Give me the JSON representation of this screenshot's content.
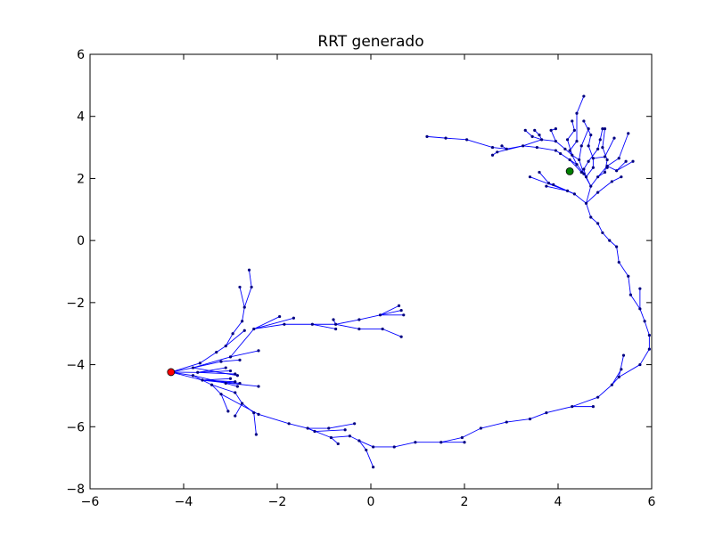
{
  "chart_data": {
    "type": "scatter",
    "title": "RRT generado",
    "xlabel": "",
    "ylabel": "",
    "xlim": [
      -6,
      6
    ],
    "ylim": [
      -8,
      6
    ],
    "xticks": [
      "−6",
      "−4",
      "−2",
      "0",
      "2",
      "4",
      "6"
    ],
    "yticks": [
      "−8",
      "−6",
      "−4",
      "−2",
      "0",
      "2",
      "4",
      "6"
    ],
    "grid": false,
    "edge_color": "#0000ff",
    "node_color": "#000080",
    "start": {
      "x": -4.27,
      "y": -4.24,
      "color": "#ff0000"
    },
    "goal": {
      "x": 4.25,
      "y": 2.23,
      "color": "#008000"
    },
    "edges": [
      [
        -4.27,
        -4.24,
        -3.8,
        -4.1
      ],
      [
        -4.27,
        -4.24,
        -3.7,
        -4.25
      ],
      [
        -4.27,
        -4.24,
        -3.8,
        -4.35
      ],
      [
        -4.27,
        -4.24,
        -3.6,
        -4.5
      ],
      [
        -4.27,
        -4.24,
        -3.65,
        -3.95
      ],
      [
        -3.8,
        -4.1,
        -3.2,
        -3.9
      ],
      [
        -3.8,
        -4.1,
        -3.0,
        -3.75
      ],
      [
        -3.65,
        -3.95,
        -3.3,
        -3.6
      ],
      [
        -3.3,
        -3.6,
        -3.1,
        -3.4
      ],
      [
        -3.1,
        -3.4,
        -2.95,
        -3.0
      ],
      [
        -3.1,
        -3.4,
        -2.7,
        -2.9
      ],
      [
        -2.95,
        -3.0,
        -2.75,
        -2.6
      ],
      [
        -2.75,
        -2.6,
        -2.7,
        -2.15
      ],
      [
        -2.7,
        -2.15,
        -2.8,
        -1.5
      ],
      [
        -2.7,
        -2.15,
        -2.55,
        -1.5
      ],
      [
        -2.55,
        -1.5,
        -2.6,
        -0.95
      ],
      [
        -3.2,
        -3.9,
        -2.8,
        -3.85
      ],
      [
        -3.0,
        -3.75,
        -2.4,
        -3.55
      ],
      [
        -3.7,
        -4.25,
        -3.1,
        -4.1
      ],
      [
        -3.7,
        -4.25,
        -3.0,
        -4.2
      ],
      [
        -3.7,
        -4.25,
        -2.9,
        -4.3
      ],
      [
        -3.6,
        -4.5,
        -3.0,
        -4.45
      ],
      [
        -3.6,
        -4.5,
        -2.9,
        -4.55
      ],
      [
        -3.6,
        -4.5,
        -2.8,
        -4.6
      ],
      [
        -3.6,
        -4.5,
        -2.4,
        -4.7
      ],
      [
        -3.8,
        -4.35,
        -3.4,
        -4.65
      ],
      [
        -3.4,
        -4.65,
        -3.2,
        -4.95
      ],
      [
        -3.2,
        -4.95,
        -3.05,
        -5.5
      ],
      [
        -3.4,
        -4.65,
        -2.9,
        -4.9
      ],
      [
        -2.9,
        -4.9,
        -2.75,
        -5.25
      ],
      [
        -2.75,
        -5.25,
        -2.9,
        -5.65
      ],
      [
        -2.75,
        -5.25,
        -2.5,
        -5.55
      ],
      [
        -2.5,
        -5.55,
        -2.45,
        -6.25
      ],
      [
        -3.8,
        -4.35,
        -3.1,
        -4.6
      ],
      [
        -3.1,
        -4.6,
        -2.85,
        -4.7
      ],
      [
        -3.8,
        -4.1,
        -2.85,
        -4.35
      ],
      [
        -3.0,
        -3.75,
        -2.5,
        -2.85
      ],
      [
        -2.5,
        -2.85,
        -1.85,
        -2.7
      ],
      [
        -2.5,
        -2.85,
        -1.65,
        -2.5
      ],
      [
        -2.5,
        -2.85,
        -1.95,
        -2.45
      ],
      [
        -1.85,
        -2.7,
        -1.25,
        -2.7
      ],
      [
        -1.25,
        -2.7,
        -0.75,
        -2.7
      ],
      [
        -1.25,
        -2.7,
        -0.75,
        -2.85
      ],
      [
        -0.75,
        -2.7,
        -0.25,
        -2.55
      ],
      [
        -0.75,
        -2.7,
        -0.8,
        -2.55
      ],
      [
        -0.75,
        -2.7,
        -0.25,
        -2.85
      ],
      [
        -0.25,
        -2.55,
        0.2,
        -2.4
      ],
      [
        0.2,
        -2.4,
        0.6,
        -2.1
      ],
      [
        0.2,
        -2.4,
        0.65,
        -2.25
      ],
      [
        0.2,
        -2.4,
        0.7,
        -2.4
      ],
      [
        -0.25,
        -2.85,
        0.25,
        -2.85
      ],
      [
        0.25,
        -2.85,
        0.65,
        -3.1
      ],
      [
        -3.2,
        -4.95,
        -2.4,
        -5.6
      ],
      [
        -2.4,
        -5.6,
        -1.75,
        -5.9
      ],
      [
        -1.75,
        -5.9,
        -1.35,
        -6.05
      ],
      [
        -1.35,
        -6.05,
        -0.9,
        -6.05
      ],
      [
        -0.9,
        -6.05,
        -0.35,
        -5.9
      ],
      [
        -1.35,
        -6.05,
        -0.85,
        -6.35
      ],
      [
        -0.85,
        -6.35,
        -0.7,
        -6.55
      ],
      [
        -1.35,
        -6.05,
        -1.2,
        -6.15
      ],
      [
        -1.2,
        -6.15,
        -0.55,
        -6.1
      ],
      [
        -0.85,
        -6.35,
        -0.45,
        -6.3
      ],
      [
        -0.45,
        -6.3,
        -0.25,
        -6.45
      ],
      [
        -0.25,
        -6.45,
        0.05,
        -6.65
      ],
      [
        -0.25,
        -6.45,
        -0.1,
        -6.75
      ],
      [
        -0.1,
        -6.75,
        0.05,
        -7.3
      ],
      [
        0.05,
        -6.65,
        0.5,
        -6.65
      ],
      [
        0.5,
        -6.65,
        0.95,
        -6.5
      ],
      [
        0.95,
        -6.5,
        1.5,
        -6.5
      ],
      [
        1.5,
        -6.5,
        2.0,
        -6.5
      ],
      [
        1.5,
        -6.5,
        1.95,
        -6.35
      ],
      [
        1.95,
        -6.35,
        2.35,
        -6.05
      ],
      [
        2.35,
        -6.05,
        2.9,
        -5.85
      ],
      [
        2.9,
        -5.85,
        3.4,
        -5.75
      ],
      [
        3.4,
        -5.75,
        3.75,
        -5.55
      ],
      [
        3.75,
        -5.55,
        4.3,
        -5.35
      ],
      [
        4.3,
        -5.35,
        4.75,
        -5.35
      ],
      [
        4.3,
        -5.35,
        4.85,
        -5.05
      ],
      [
        4.85,
        -5.05,
        5.15,
        -4.65
      ],
      [
        5.15,
        -4.65,
        5.3,
        -4.4
      ],
      [
        5.3,
        -4.4,
        5.4,
        -3.7
      ],
      [
        5.15,
        -4.65,
        5.35,
        -4.15
      ],
      [
        5.3,
        -4.4,
        5.75,
        -4.0
      ],
      [
        5.75,
        -4.0,
        5.95,
        -3.5
      ],
      [
        5.95,
        -3.5,
        5.95,
        -3.05
      ],
      [
        5.95,
        -3.05,
        5.85,
        -2.6
      ],
      [
        5.85,
        -2.6,
        5.75,
        -2.2
      ],
      [
        5.75,
        -2.2,
        5.75,
        -1.55
      ],
      [
        5.75,
        -2.2,
        5.55,
        -1.75
      ],
      [
        5.55,
        -1.75,
        5.5,
        -1.15
      ],
      [
        5.5,
        -1.15,
        5.3,
        -0.7
      ],
      [
        5.3,
        -0.7,
        5.25,
        -0.2
      ],
      [
        5.25,
        -0.2,
        5.1,
        0.0
      ],
      [
        5.1,
        0.0,
        4.95,
        0.25
      ],
      [
        4.95,
        0.25,
        4.85,
        0.55
      ],
      [
        4.85,
        0.55,
        4.7,
        0.75
      ],
      [
        4.7,
        0.75,
        4.6,
        1.2
      ],
      [
        4.6,
        1.2,
        4.35,
        1.5
      ],
      [
        4.35,
        1.5,
        3.8,
        1.85
      ],
      [
        3.8,
        1.85,
        3.6,
        2.2
      ],
      [
        4.35,
        1.5,
        3.9,
        1.8
      ],
      [
        4.6,
        1.2,
        4.7,
        1.75
      ],
      [
        4.7,
        1.75,
        4.55,
        2.15
      ],
      [
        4.55,
        2.15,
        4.4,
        2.45
      ],
      [
        4.4,
        2.45,
        4.25,
        2.9
      ],
      [
        4.25,
        2.9,
        4.4,
        3.2
      ],
      [
        4.4,
        3.2,
        4.4,
        4.1
      ],
      [
        4.4,
        4.1,
        4.55,
        4.65
      ],
      [
        4.7,
        1.75,
        4.85,
        2.05
      ],
      [
        4.85,
        2.05,
        5.05,
        2.4
      ],
      [
        5.05,
        2.4,
        5.3,
        2.65
      ],
      [
        5.3,
        2.65,
        5.5,
        3.45
      ],
      [
        4.85,
        2.05,
        5.0,
        2.2
      ],
      [
        5.0,
        2.2,
        5.05,
        2.6
      ],
      [
        5.05,
        2.6,
        4.95,
        3.0
      ],
      [
        4.95,
        3.0,
        5.0,
        3.6
      ],
      [
        4.7,
        1.75,
        4.6,
        2.05
      ],
      [
        4.6,
        2.05,
        4.55,
        2.3
      ],
      [
        4.6,
        2.05,
        4.75,
        2.35
      ],
      [
        4.75,
        2.35,
        4.75,
        2.65
      ],
      [
        4.75,
        2.65,
        4.65,
        3.05
      ],
      [
        4.65,
        3.05,
        4.7,
        3.4
      ],
      [
        4.75,
        2.65,
        5.0,
        2.7
      ],
      [
        5.0,
        2.7,
        5.2,
        3.3
      ],
      [
        5.05,
        2.4,
        5.25,
        2.25
      ],
      [
        5.25,
        2.25,
        5.45,
        2.55
      ],
      [
        5.25,
        2.25,
        5.6,
        2.55
      ],
      [
        5.05,
        2.4,
        5.05,
        2.35
      ],
      [
        4.55,
        2.15,
        4.45,
        2.6
      ],
      [
        4.45,
        2.6,
        4.5,
        3.05
      ],
      [
        4.45,
        2.6,
        4.3,
        2.75
      ],
      [
        4.3,
        2.75,
        4.15,
        2.95
      ],
      [
        4.15,
        2.95,
        3.95,
        3.2
      ],
      [
        3.95,
        3.2,
        3.65,
        3.25
      ],
      [
        3.65,
        3.25,
        3.25,
        3.05
      ],
      [
        3.25,
        3.05,
        2.9,
        2.95
      ],
      [
        2.9,
        2.95,
        2.8,
        3.05
      ],
      [
        2.9,
        2.95,
        2.6,
        3.0
      ],
      [
        2.6,
        3.0,
        2.05,
        3.25
      ],
      [
        2.05,
        3.25,
        1.6,
        3.3
      ],
      [
        1.6,
        3.3,
        1.2,
        3.35
      ],
      [
        3.25,
        3.05,
        2.7,
        2.85
      ],
      [
        2.7,
        2.85,
        2.6,
        2.75
      ],
      [
        3.65,
        3.25,
        3.45,
        3.35
      ],
      [
        3.45,
        3.35,
        3.3,
        3.55
      ],
      [
        3.65,
        3.25,
        3.6,
        3.4
      ],
      [
        3.6,
        3.4,
        3.5,
        3.55
      ],
      [
        3.95,
        3.2,
        3.85,
        3.55
      ],
      [
        3.85,
        3.55,
        3.95,
        3.6
      ],
      [
        4.3,
        2.75,
        4.2,
        3.25
      ],
      [
        4.2,
        3.25,
        4.35,
        3.55
      ],
      [
        4.35,
        3.55,
        4.3,
        3.85
      ],
      [
        4.55,
        2.3,
        4.65,
        2.55
      ],
      [
        4.65,
        2.55,
        4.85,
        2.95
      ],
      [
        4.85,
        2.95,
        4.9,
        3.25
      ],
      [
        4.9,
        3.25,
        4.95,
        3.6
      ],
      [
        4.7,
        3.4,
        4.55,
        3.85
      ],
      [
        4.5,
        3.05,
        4.65,
        3.6
      ],
      [
        3.25,
        3.05,
        3.55,
        3.0
      ],
      [
        3.55,
        3.0,
        3.95,
        2.9
      ],
      [
        3.95,
        2.9,
        4.05,
        2.8
      ],
      [
        4.05,
        2.8,
        4.25,
        2.6
      ],
      [
        4.25,
        2.6,
        4.4,
        2.45
      ],
      [
        4.25,
        2.6,
        4.5,
        2.2
      ],
      [
        4.35,
        1.5,
        4.2,
        1.6
      ],
      [
        4.2,
        1.6,
        3.4,
        2.05
      ],
      [
        4.2,
        1.6,
        3.75,
        1.75
      ],
      [
        4.6,
        1.2,
        4.85,
        1.55
      ],
      [
        4.85,
        1.55,
        5.15,
        1.9
      ],
      [
        5.15,
        1.9,
        5.35,
        2.05
      ]
    ]
  }
}
